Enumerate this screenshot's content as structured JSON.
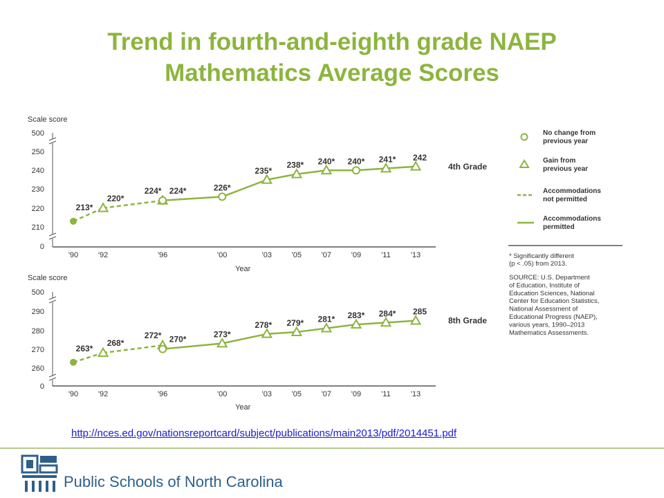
{
  "title": {
    "line1": "Trend in fourth-and-eighth grade NAEP",
    "line2": "Mathematics Average Scores"
  },
  "chart_data": [
    {
      "type": "line",
      "ylabel": "Scale score",
      "xlabel": "Year",
      "y_ticks": [
        "500",
        "250",
        "240",
        "230",
        "220",
        "210",
        "0"
      ],
      "y_broken_range": [
        205,
        253
      ],
      "categories": [
        "'90",
        "'92",
        "'96",
        "'00",
        "'03",
        "'05",
        "'07",
        "'09",
        "'11",
        "'13"
      ],
      "values": [
        213,
        220,
        224,
        224,
        226,
        235,
        238,
        240,
        240,
        241,
        242
      ],
      "x_years": [
        1990,
        1992,
        1996,
        1996,
        2000,
        2003,
        2005,
        2007,
        2009,
        2011,
        2013
      ],
      "labels": [
        "213*",
        "220*",
        "224*",
        "224*",
        "226*",
        "235*",
        "238*",
        "240*",
        "240*",
        "241*",
        "242"
      ],
      "markers": [
        "start",
        "gain",
        "gain",
        "nochange",
        "nochange",
        "gain",
        "gain",
        "gain",
        "nochange",
        "gain",
        "gain"
      ],
      "segments": [
        "dashed",
        "dashed",
        "solid",
        "solid",
        "solid",
        "solid",
        "solid",
        "solid",
        "solid",
        "solid"
      ],
      "series_label": "4th Grade"
    },
    {
      "type": "line",
      "ylabel": "Scale score",
      "xlabel": "Year",
      "y_ticks": [
        "500",
        "290",
        "280",
        "270",
        "260",
        "0"
      ],
      "y_broken_range": [
        255,
        293
      ],
      "categories": [
        "'90",
        "'92",
        "'96",
        "'00",
        "'03",
        "'05",
        "'07",
        "'09",
        "'11",
        "'13"
      ],
      "values": [
        263,
        268,
        272,
        270,
        273,
        278,
        279,
        281,
        283,
        284,
        285
      ],
      "x_years": [
        1990,
        1992,
        1996,
        1996,
        2000,
        2003,
        2005,
        2007,
        2009,
        2011,
        2013
      ],
      "labels": [
        "263*",
        "268*",
        "272*",
        "270*",
        "273*",
        "278*",
        "279*",
        "281*",
        "283*",
        "284*",
        "285"
      ],
      "markers": [
        "start",
        "gain",
        "gain",
        "nochange",
        "gain",
        "gain",
        "gain",
        "gain",
        "gain",
        "gain",
        "gain"
      ],
      "segments": [
        "dashed",
        "dashed",
        "solid",
        "solid",
        "solid",
        "solid",
        "solid",
        "solid",
        "solid",
        "solid"
      ],
      "series_label": "8th Grade"
    }
  ],
  "legend": {
    "items": [
      {
        "symbol": "circle",
        "line1": "No change from",
        "line2": "previous year"
      },
      {
        "symbol": "triangle",
        "line1": "Gain from",
        "line2": "previous year"
      },
      {
        "symbol": "dashed",
        "line1": "Accommodations",
        "line2": "not permitted"
      },
      {
        "symbol": "solid",
        "line1": "Accommodations",
        "line2": "permitted"
      }
    ],
    "note_lines": [
      "* Significantly different",
      "(p < .05) from 2013."
    ],
    "source_lines": [
      "SOURCE: U.S. Department",
      "of Education, Institute of",
      "Education Sciences, National",
      "Center for Education Statistics,",
      "National Assessment of",
      "Educational Progress (NAEP),",
      "various years, 1990–2013",
      "Mathematics Assessments."
    ]
  },
  "source_url": "http://nces.ed.gov/nationsreportcard/subject/publications/main2013/pdf/2014451.pdf",
  "footer": {
    "org_name": "Public Schools of North Carolina"
  },
  "colors": {
    "accent": "#8db43e",
    "line": "#8db43e",
    "link": "#1a1ad6",
    "org": "#2d5f8a"
  }
}
